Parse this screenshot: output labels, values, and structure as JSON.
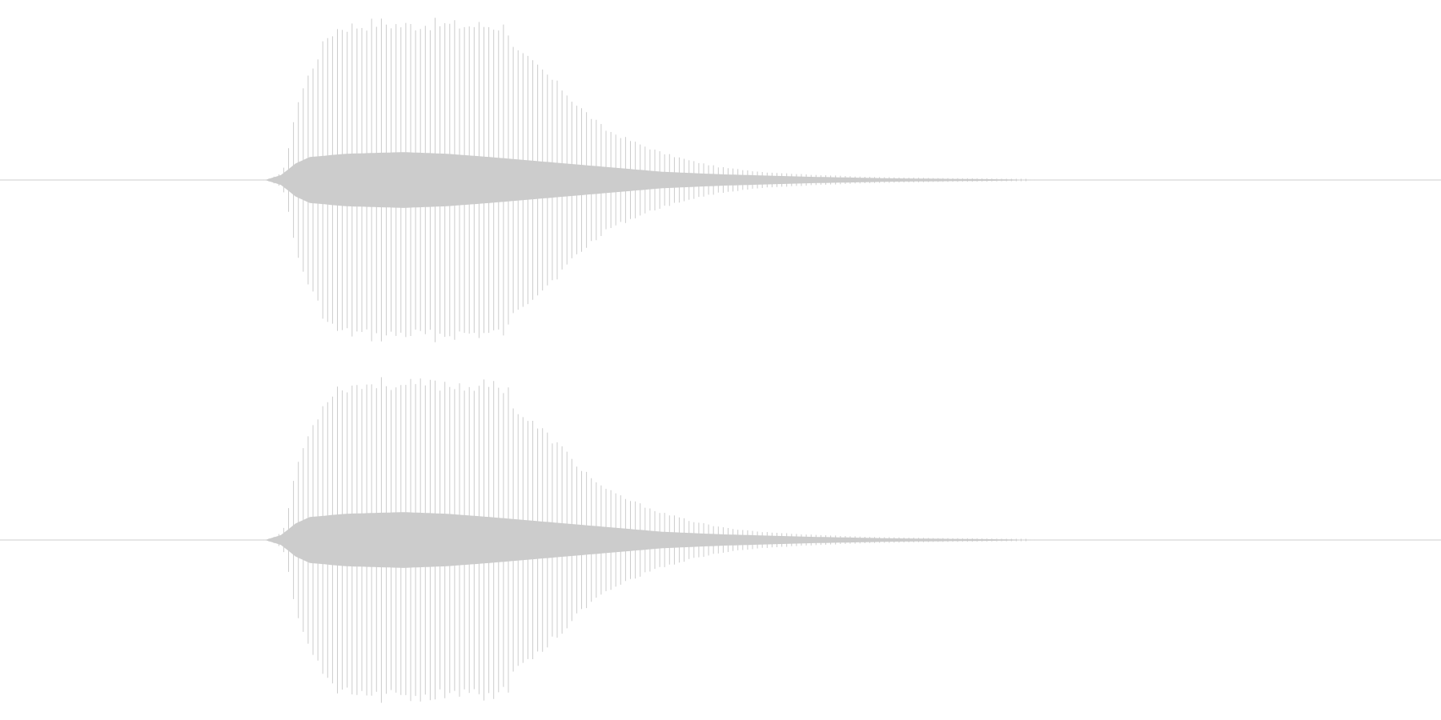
{
  "waveform": {
    "colors": {
      "background": "#ffffff",
      "wave": "#cccccc",
      "center_line": "#cccccc"
    },
    "channels": [
      {
        "id": "left"
      },
      {
        "id": "right"
      }
    ],
    "envelope_peaks": [
      [
        0.0,
        0.0
      ],
      [
        0.184,
        0.0
      ],
      [
        0.19,
        0.02
      ],
      [
        0.196,
        0.05
      ],
      [
        0.2,
        0.18
      ],
      [
        0.205,
        0.45
      ],
      [
        0.212,
        0.62
      ],
      [
        0.22,
        0.78
      ],
      [
        0.228,
        0.92
      ],
      [
        0.236,
        0.97
      ],
      [
        0.25,
        0.98
      ],
      [
        0.262,
        1.0
      ],
      [
        0.28,
        0.98
      ],
      [
        0.3,
        0.99
      ],
      [
        0.32,
        0.98
      ],
      [
        0.34,
        0.98
      ],
      [
        0.352,
        0.97
      ],
      [
        0.358,
        0.82
      ],
      [
        0.368,
        0.75
      ],
      [
        0.378,
        0.68
      ],
      [
        0.39,
        0.58
      ],
      [
        0.4,
        0.48
      ],
      [
        0.41,
        0.4
      ],
      [
        0.42,
        0.32
      ],
      [
        0.44,
        0.24
      ],
      [
        0.46,
        0.17
      ],
      [
        0.48,
        0.12
      ],
      [
        0.5,
        0.08
      ],
      [
        0.53,
        0.05
      ],
      [
        0.56,
        0.035
      ],
      [
        0.6,
        0.02
      ],
      [
        0.65,
        0.012
      ],
      [
        0.7,
        0.008
      ],
      [
        0.71,
        0.003
      ],
      [
        0.72,
        0.0
      ],
      [
        1.0,
        0.0
      ]
    ],
    "envelope_body": [
      [
        0.0,
        0.0
      ],
      [
        0.184,
        0.0
      ],
      [
        0.195,
        0.03
      ],
      [
        0.205,
        0.1
      ],
      [
        0.215,
        0.14
      ],
      [
        0.24,
        0.16
      ],
      [
        0.28,
        0.17
      ],
      [
        0.31,
        0.16
      ],
      [
        0.34,
        0.14
      ],
      [
        0.38,
        0.11
      ],
      [
        0.42,
        0.08
      ],
      [
        0.46,
        0.05
      ],
      [
        0.5,
        0.035
      ],
      [
        0.56,
        0.02
      ],
      [
        0.62,
        0.01
      ],
      [
        0.7,
        0.004
      ],
      [
        0.72,
        0.0
      ],
      [
        1.0,
        0.0
      ]
    ]
  }
}
